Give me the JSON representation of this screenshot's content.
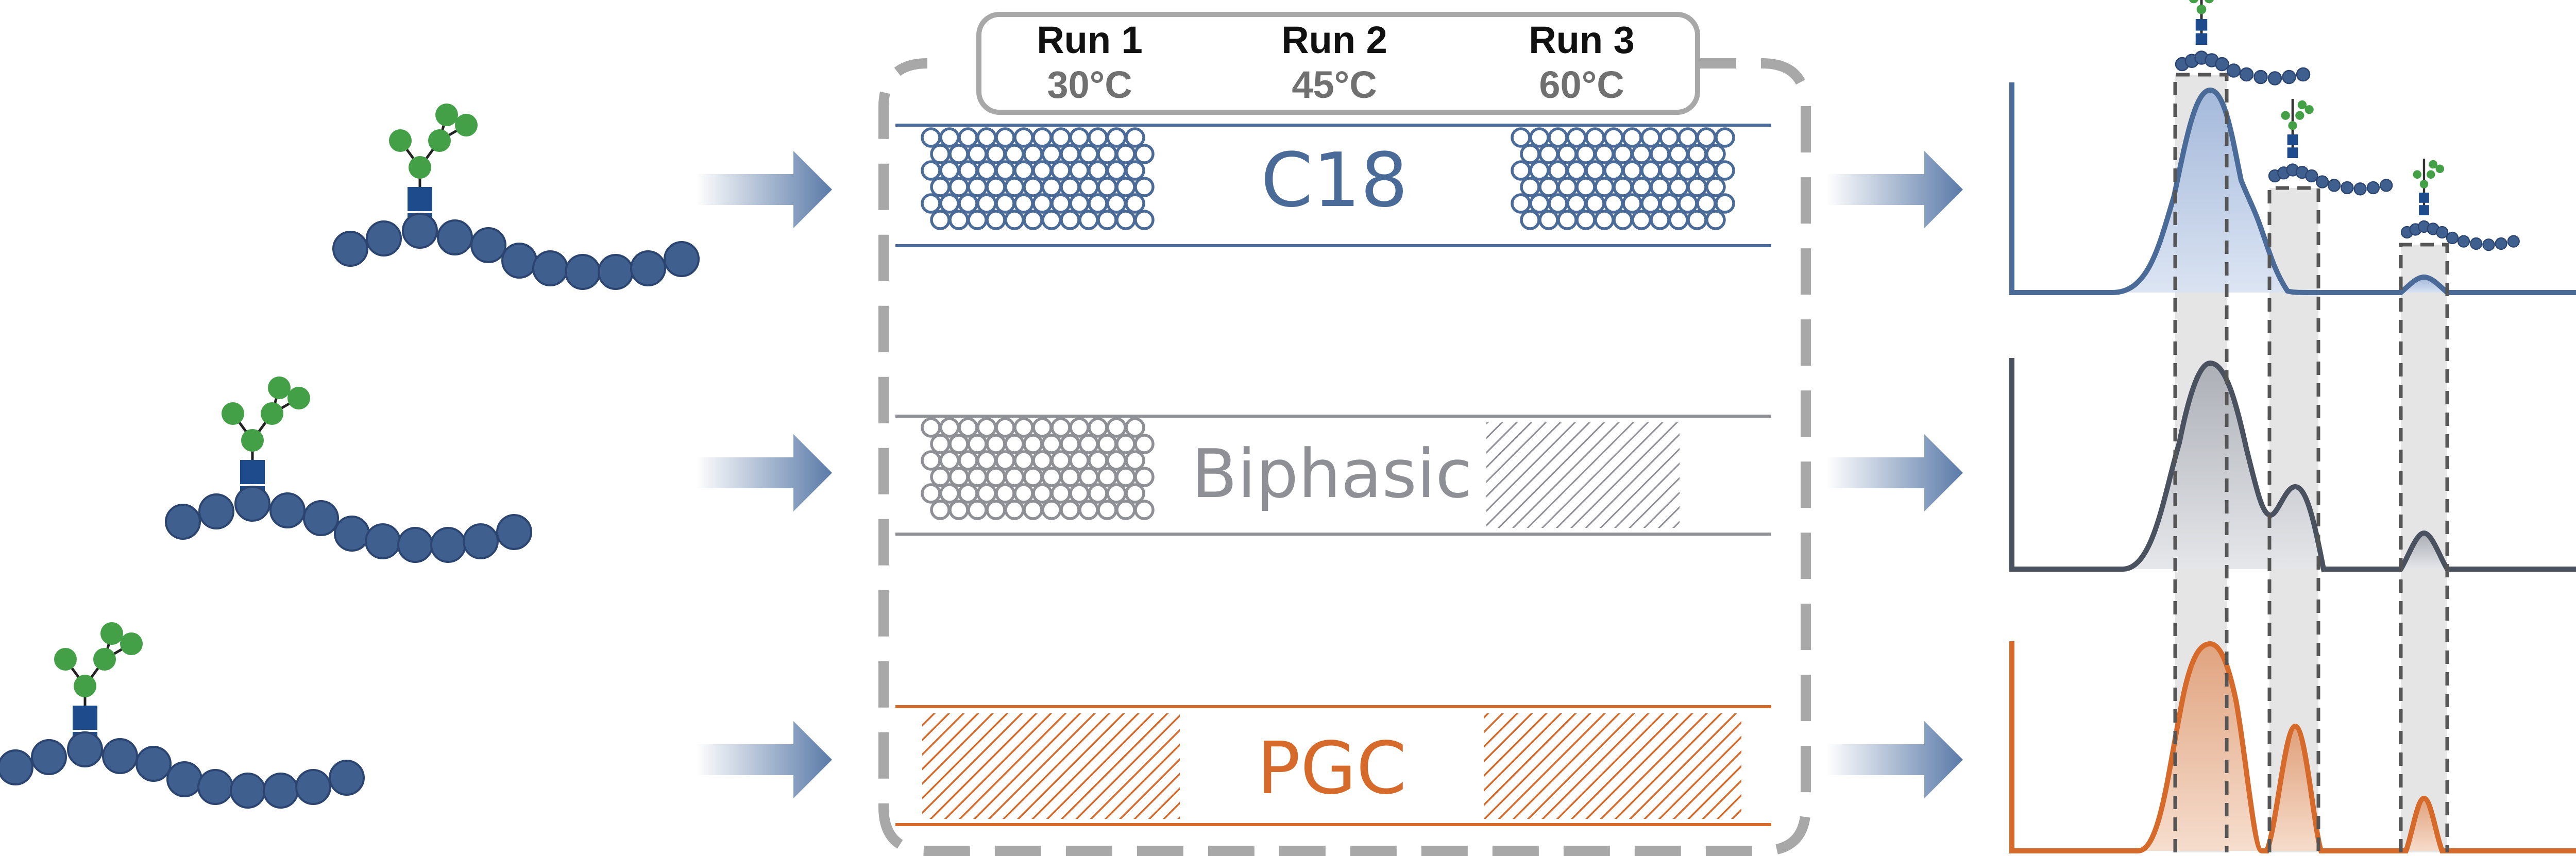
{
  "colors": {
    "glycan_green": "#44A046",
    "gln_blue": "#1E4B8C",
    "peptide_blue": "#3F5F8E",
    "c18_blue": "#4A6A98",
    "biphasic_gray": "#8E9096",
    "pgc_orange": "#D66A2A",
    "dashed_gray": "#A8A8A8",
    "arrow_blue": "#5A7AA8",
    "chrom2_gray": "#4A5260"
  },
  "runs": [
    {
      "name": "Run 1",
      "temp": "30°C"
    },
    {
      "name": "Run 2",
      "temp": "45°C"
    },
    {
      "name": "Run 3",
      "temp": "60°C"
    }
  ],
  "columns": {
    "c18": "C18",
    "biphasic": "Biphasic",
    "pgc": "PGC"
  },
  "chromatograms": [
    {
      "name": "c18-chromatogram",
      "color": "c18_blue"
    },
    {
      "name": "biphasic-chromatogram",
      "color": "chrom2_gray"
    },
    {
      "name": "pgc-chromatogram",
      "color": "pgc_orange"
    }
  ]
}
